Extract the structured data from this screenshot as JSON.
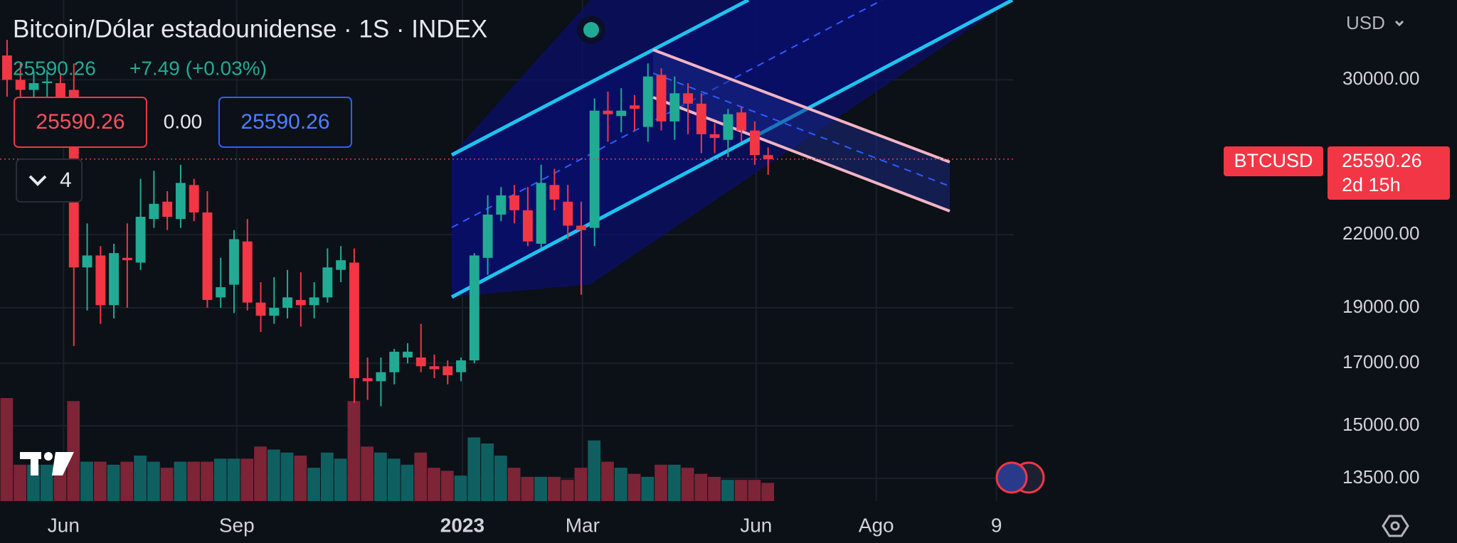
{
  "header": {
    "title": "Bitcoin/Dólar estadounidense · 1S · INDEX",
    "last": "25590.26",
    "change": "+7.49 (+0.03%)",
    "sell": "25590.26",
    "spread": "0.00",
    "buy": "25590.26",
    "indicators": "4",
    "currency": "USD",
    "symbol": "BTCUSD",
    "price_label": "25590.26",
    "countdown": "2d 15h"
  },
  "chart_data": {
    "type": "candlestick",
    "log_scale": true,
    "grid": true,
    "up_color": "#22ab94",
    "down_color": "#f23645",
    "up_volume_color": "#0f5f61",
    "down_volume_color": "#7d2436",
    "ylim": [
      12900,
      35200
    ],
    "yticks": [
      {
        "value": 30000,
        "label": "30000.00"
      },
      {
        "value": 22000,
        "label": "22000.00"
      },
      {
        "value": 19000,
        "label": "19000.00"
      },
      {
        "value": 17000,
        "label": "17000.00"
      },
      {
        "value": 15000,
        "label": "15000.00"
      },
      {
        "value": 13500,
        "label": "13500.00"
      }
    ],
    "xlim": [
      -0.53,
      75.4
    ],
    "xticks": [
      {
        "value": 4.23,
        "label": "Jun"
      },
      {
        "value": 17.2,
        "label": "Sep"
      },
      {
        "value": 34.1,
        "label": "2023"
      },
      {
        "value": 43.1,
        "label": "Mar"
      },
      {
        "value": 56.1,
        "label": "Jun"
      },
      {
        "value": 65.1,
        "label": "Ago"
      },
      {
        "value": 74.1,
        "label": "9"
      }
    ],
    "open": [
      31500,
      30000,
      29400,
      29800,
      29800,
      29400,
      20600,
      21100,
      19100,
      21000,
      20800,
      22700,
      23500,
      22700,
      24300,
      23000,
      19400,
      19900,
      21700,
      19200,
      18700,
      19000,
      19300,
      19100,
      19400,
      20500,
      20800,
      16500,
      16400,
      16700,
      17200,
      17200,
      16900,
      16900,
      16700,
      17100,
      21000,
      22900,
      23800,
      23100,
      21600,
      24300,
      23500,
      22400,
      22300,
      28200,
      27900,
      28500,
      27300,
      30300,
      27600,
      29200,
      28600,
      26900,
      26600,
      28100,
      27100,
      25800
    ],
    "high": [
      32500,
      31000,
      30500,
      30600,
      30400,
      31000,
      22500,
      21500,
      21600,
      22500,
      24600,
      25000,
      24000,
      25300,
      24600,
      24000,
      21000,
      22200,
      22700,
      20000,
      20200,
      20500,
      20400,
      20000,
      21400,
      21500,
      21400,
      17200,
      17200,
      17500,
      17700,
      18400,
      17300,
      17100,
      17200,
      21200,
      23800,
      24200,
      24300,
      24200,
      25300,
      25100,
      24300,
      23500,
      28900,
      29300,
      29500,
      29100,
      31000,
      30700,
      30200,
      29800,
      29200,
      27500,
      28300,
      28400,
      27600,
      26200
    ],
    "low": [
      29000,
      28500,
      28700,
      29000,
      28300,
      17600,
      18900,
      18400,
      18600,
      19000,
      20500,
      22300,
      22200,
      22300,
      22600,
      19000,
      19000,
      18800,
      18900,
      18100,
      18400,
      18600,
      18300,
      18600,
      19200,
      20000,
      15700,
      15800,
      15600,
      16300,
      17000,
      16700,
      16500,
      16300,
      16400,
      17000,
      20300,
      22600,
      22500,
      21500,
      21400,
      23100,
      21800,
      19500,
      21500,
      26500,
      27000,
      27100,
      26500,
      27100,
      26600,
      26900,
      25900,
      25900,
      25700,
      26500,
      25300,
      24800
    ],
    "close": [
      30000,
      29400,
      29800,
      29900,
      28700,
      20600,
      21100,
      19100,
      21200,
      20900,
      22800,
      23400,
      22800,
      24400,
      23000,
      19300,
      19800,
      21800,
      19200,
      18700,
      19000,
      19400,
      19100,
      19400,
      20600,
      20900,
      16500,
      16400,
      16700,
      17400,
      17400,
      16900,
      16800,
      16600,
      17100,
      21100,
      22900,
      23800,
      23100,
      21700,
      24400,
      23600,
      22400,
      22200,
      28200,
      28000,
      28200,
      28300,
      30200,
      27600,
      29200,
      28600,
      26900,
      26700,
      28000,
      27100,
      25800,
      25590.26
    ],
    "volume": [
      170,
      60,
      60,
      60,
      60,
      165,
      65,
      65,
      60,
      65,
      75,
      65,
      55,
      65,
      65,
      65,
      70,
      70,
      70,
      90,
      85,
      80,
      75,
      55,
      80,
      70,
      165,
      90,
      80,
      70,
      60,
      80,
      55,
      50,
      42,
      105,
      95,
      75,
      55,
      40,
      40,
      40,
      35,
      55,
      100,
      65,
      55,
      45,
      40,
      60,
      60,
      55,
      45,
      40,
      35,
      35,
      35,
      30
    ]
  }
}
